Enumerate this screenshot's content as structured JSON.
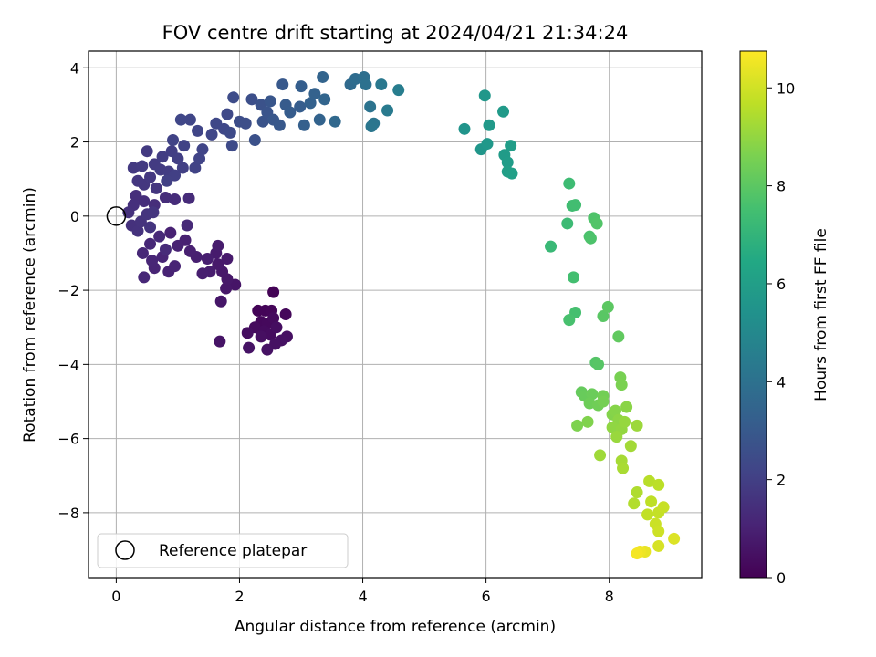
{
  "chart_data": {
    "type": "scatter",
    "title": "FOV centre drift starting at 2024/04/21 21:34:24",
    "xlabel": "Angular distance from reference (arcmin)",
    "ylabel": "Rotation from reference (arcmin)",
    "xlim": [
      -0.45,
      9.5
    ],
    "ylim": [
      -9.75,
      4.45
    ],
    "xticks": [
      0,
      2,
      4,
      6,
      8
    ],
    "yticks": [
      -8,
      -6,
      -4,
      -2,
      0,
      2,
      4
    ],
    "grid": true,
    "legend": {
      "position": "lower-left",
      "entries": [
        "Reference platepar"
      ]
    },
    "reference_point": {
      "x": 0,
      "y": 0,
      "label": "Reference platepar"
    },
    "colorbar": {
      "label": "Hours from first FF file",
      "colormap": "viridis",
      "range": [
        0,
        10.75
      ],
      "ticks": [
        0,
        2,
        4,
        6,
        8,
        10
      ]
    },
    "points": [
      {
        "x": 2.55,
        "y": -2.05,
        "t": 0.05
      },
      {
        "x": 2.3,
        "y": -2.55,
        "t": 0.1
      },
      {
        "x": 2.42,
        "y": -2.55,
        "t": 0.12
      },
      {
        "x": 2.52,
        "y": -2.55,
        "t": 0.15
      },
      {
        "x": 2.75,
        "y": -2.65,
        "t": 0.2
      },
      {
        "x": 2.35,
        "y": -2.85,
        "t": 0.22
      },
      {
        "x": 2.45,
        "y": -2.9,
        "t": 0.25
      },
      {
        "x": 2.55,
        "y": -2.75,
        "t": 0.28
      },
      {
        "x": 2.25,
        "y": -3.0,
        "t": 0.3
      },
      {
        "x": 2.4,
        "y": -3.1,
        "t": 0.32
      },
      {
        "x": 2.5,
        "y": -3.2,
        "t": 0.35
      },
      {
        "x": 2.6,
        "y": -3.0,
        "t": 0.38
      },
      {
        "x": 2.13,
        "y": -3.15,
        "t": 0.4
      },
      {
        "x": 2.35,
        "y": -3.25,
        "t": 0.42
      },
      {
        "x": 2.77,
        "y": -3.25,
        "t": 0.45
      },
      {
        "x": 2.68,
        "y": -3.35,
        "t": 0.48
      },
      {
        "x": 2.58,
        "y": -3.45,
        "t": 0.5
      },
      {
        "x": 2.45,
        "y": -3.6,
        "t": 0.52
      },
      {
        "x": 2.15,
        "y": -3.55,
        "t": 0.55
      },
      {
        "x": 1.68,
        "y": -3.38,
        "t": 0.58
      },
      {
        "x": 1.93,
        "y": -1.85,
        "t": 0.62
      },
      {
        "x": 1.7,
        "y": -2.3,
        "t": 0.65
      },
      {
        "x": 1.78,
        "y": -1.95,
        "t": 0.68
      },
      {
        "x": 1.8,
        "y": -1.7,
        "t": 0.7
      },
      {
        "x": 1.72,
        "y": -1.5,
        "t": 0.72
      },
      {
        "x": 1.65,
        "y": -1.3,
        "t": 0.75
      },
      {
        "x": 1.8,
        "y": -1.15,
        "t": 0.78
      },
      {
        "x": 1.62,
        "y": -1.0,
        "t": 0.8
      },
      {
        "x": 1.65,
        "y": -0.8,
        "t": 0.82
      },
      {
        "x": 1.52,
        "y": -1.5,
        "t": 0.85
      },
      {
        "x": 1.4,
        "y": -1.55,
        "t": 0.88
      },
      {
        "x": 1.48,
        "y": -1.15,
        "t": 0.9
      },
      {
        "x": 1.3,
        "y": -1.1,
        "t": 0.92
      },
      {
        "x": 1.2,
        "y": -0.95,
        "t": 0.95
      },
      {
        "x": 1.12,
        "y": -0.65,
        "t": 0.98
      },
      {
        "x": 1.0,
        "y": -0.8,
        "t": 1.0
      },
      {
        "x": 0.88,
        "y": -0.45,
        "t": 1.02
      },
      {
        "x": 0.85,
        "y": -1.5,
        "t": 1.05
      },
      {
        "x": 0.95,
        "y": -1.35,
        "t": 1.08
      },
      {
        "x": 0.62,
        "y": -1.4,
        "t": 1.1
      },
      {
        "x": 0.75,
        "y": -1.1,
        "t": 1.12
      },
      {
        "x": 0.58,
        "y": -1.2,
        "t": 1.15
      },
      {
        "x": 0.45,
        "y": -1.65,
        "t": 1.18
      },
      {
        "x": 0.43,
        "y": -1.0,
        "t": 1.2
      },
      {
        "x": 0.55,
        "y": -0.75,
        "t": 1.22
      },
      {
        "x": 0.7,
        "y": -0.55,
        "t": 1.25
      },
      {
        "x": 1.15,
        "y": -0.25,
        "t": 1.28
      },
      {
        "x": 0.8,
        "y": -0.9,
        "t": 1.3
      },
      {
        "x": 1.18,
        "y": 0.48,
        "t": 1.32
      },
      {
        "x": 0.95,
        "y": 0.45,
        "t": 1.35
      },
      {
        "x": 0.8,
        "y": 0.5,
        "t": 1.38
      },
      {
        "x": 0.62,
        "y": 0.3,
        "t": 1.4
      },
      {
        "x": 0.45,
        "y": 0.4,
        "t": 1.42
      },
      {
        "x": 0.32,
        "y": 0.55,
        "t": 1.45
      },
      {
        "x": 0.28,
        "y": 0.3,
        "t": 1.48
      },
      {
        "x": 0.2,
        "y": 0.1,
        "t": 1.5
      },
      {
        "x": 0.25,
        "y": -0.25,
        "t": 1.52
      },
      {
        "x": 0.35,
        "y": -0.4,
        "t": 1.55
      },
      {
        "x": 0.4,
        "y": -0.15,
        "t": 1.58
      },
      {
        "x": 0.5,
        "y": 0.05,
        "t": 1.6
      },
      {
        "x": 0.55,
        "y": -0.3,
        "t": 1.62
      },
      {
        "x": 0.6,
        "y": 0.1,
        "t": 1.65
      },
      {
        "x": 0.65,
        "y": 0.75,
        "t": 1.68
      },
      {
        "x": 0.45,
        "y": 0.85,
        "t": 1.7
      },
      {
        "x": 0.35,
        "y": 0.95,
        "t": 1.72
      },
      {
        "x": 0.55,
        "y": 1.05,
        "t": 1.75
      },
      {
        "x": 0.28,
        "y": 1.3,
        "t": 1.78
      },
      {
        "x": 0.42,
        "y": 1.35,
        "t": 1.8
      },
      {
        "x": 0.5,
        "y": 1.75,
        "t": 1.82
      },
      {
        "x": 0.62,
        "y": 1.4,
        "t": 1.85
      },
      {
        "x": 0.72,
        "y": 1.25,
        "t": 1.88
      },
      {
        "x": 0.85,
        "y": 1.2,
        "t": 1.9
      },
      {
        "x": 0.75,
        "y": 1.6,
        "t": 1.92
      },
      {
        "x": 0.9,
        "y": 1.75,
        "t": 1.95
      },
      {
        "x": 1.0,
        "y": 1.55,
        "t": 1.98
      },
      {
        "x": 1.08,
        "y": 1.3,
        "t": 2.0
      },
      {
        "x": 0.95,
        "y": 1.1,
        "t": 2.02
      },
      {
        "x": 0.82,
        "y": 0.95,
        "t": 2.05
      },
      {
        "x": 1.1,
        "y": 1.9,
        "t": 2.08
      },
      {
        "x": 0.92,
        "y": 2.05,
        "t": 2.1
      },
      {
        "x": 1.28,
        "y": 1.3,
        "t": 2.12
      },
      {
        "x": 1.35,
        "y": 1.55,
        "t": 2.15
      },
      {
        "x": 1.4,
        "y": 1.8,
        "t": 2.18
      },
      {
        "x": 1.32,
        "y": 2.3,
        "t": 2.2
      },
      {
        "x": 1.2,
        "y": 2.6,
        "t": 2.22
      },
      {
        "x": 1.05,
        "y": 2.6,
        "t": 2.25
      },
      {
        "x": 1.55,
        "y": 2.2,
        "t": 2.28
      },
      {
        "x": 1.62,
        "y": 2.5,
        "t": 2.3
      },
      {
        "x": 1.75,
        "y": 2.35,
        "t": 2.32
      },
      {
        "x": 1.8,
        "y": 2.75,
        "t": 2.35
      },
      {
        "x": 1.85,
        "y": 2.25,
        "t": 2.38
      },
      {
        "x": 1.88,
        "y": 1.9,
        "t": 2.4
      },
      {
        "x": 1.9,
        "y": 3.2,
        "t": 2.45
      },
      {
        "x": 2.0,
        "y": 2.55,
        "t": 2.5
      },
      {
        "x": 2.1,
        "y": 2.5,
        "t": 2.55
      },
      {
        "x": 2.2,
        "y": 3.15,
        "t": 2.6
      },
      {
        "x": 2.25,
        "y": 2.05,
        "t": 2.65
      },
      {
        "x": 2.35,
        "y": 3.0,
        "t": 2.7
      },
      {
        "x": 2.38,
        "y": 2.55,
        "t": 2.75
      },
      {
        "x": 2.45,
        "y": 2.8,
        "t": 2.8
      },
      {
        "x": 2.5,
        "y": 3.1,
        "t": 2.85
      },
      {
        "x": 2.55,
        "y": 2.6,
        "t": 2.9
      },
      {
        "x": 2.65,
        "y": 2.45,
        "t": 2.95
      },
      {
        "x": 2.7,
        "y": 3.55,
        "t": 3.0
      },
      {
        "x": 2.75,
        "y": 3.0,
        "t": 3.05
      },
      {
        "x": 2.82,
        "y": 2.8,
        "t": 3.1
      },
      {
        "x": 2.98,
        "y": 2.95,
        "t": 3.15
      },
      {
        "x": 3.0,
        "y": 3.5,
        "t": 3.2
      },
      {
        "x": 3.05,
        "y": 2.45,
        "t": 3.25
      },
      {
        "x": 3.15,
        "y": 3.05,
        "t": 3.3
      },
      {
        "x": 3.22,
        "y": 3.3,
        "t": 3.35
      },
      {
        "x": 3.3,
        "y": 2.6,
        "t": 3.4
      },
      {
        "x": 3.35,
        "y": 3.75,
        "t": 3.45
      },
      {
        "x": 3.38,
        "y": 3.15,
        "t": 3.5
      },
      {
        "x": 3.55,
        "y": 2.55,
        "t": 3.6
      },
      {
        "x": 3.8,
        "y": 3.55,
        "t": 3.7
      },
      {
        "x": 3.88,
        "y": 3.7,
        "t": 3.8
      },
      {
        "x": 4.02,
        "y": 3.75,
        "t": 3.9
      },
      {
        "x": 4.05,
        "y": 3.55,
        "t": 4.0
      },
      {
        "x": 4.12,
        "y": 2.95,
        "t": 4.1
      },
      {
        "x": 4.18,
        "y": 2.5,
        "t": 4.15
      },
      {
        "x": 4.14,
        "y": 2.42,
        "t": 4.2
      },
      {
        "x": 4.3,
        "y": 3.55,
        "t": 4.3
      },
      {
        "x": 4.4,
        "y": 2.85,
        "t": 4.4
      },
      {
        "x": 4.58,
        "y": 3.4,
        "t": 4.5
      },
      {
        "x": 5.65,
        "y": 2.35,
        "t": 5.5
      },
      {
        "x": 5.92,
        "y": 1.8,
        "t": 5.6
      },
      {
        "x": 5.98,
        "y": 3.25,
        "t": 5.65
      },
      {
        "x": 6.02,
        "y": 1.95,
        "t": 5.7
      },
      {
        "x": 6.05,
        "y": 2.45,
        "t": 5.75
      },
      {
        "x": 6.28,
        "y": 2.82,
        "t": 5.8
      },
      {
        "x": 6.3,
        "y": 1.65,
        "t": 5.85
      },
      {
        "x": 6.35,
        "y": 1.45,
        "t": 5.9
      },
      {
        "x": 6.4,
        "y": 1.9,
        "t": 5.95
      },
      {
        "x": 6.35,
        "y": 1.2,
        "t": 6.0
      },
      {
        "x": 6.42,
        "y": 1.15,
        "t": 6.05
      },
      {
        "x": 7.05,
        "y": -0.82,
        "t": 7.2
      },
      {
        "x": 7.32,
        "y": -0.2,
        "t": 7.3
      },
      {
        "x": 7.35,
        "y": 0.88,
        "t": 7.35
      },
      {
        "x": 7.4,
        "y": 0.28,
        "t": 7.4
      },
      {
        "x": 7.45,
        "y": 0.3,
        "t": 7.45
      },
      {
        "x": 7.42,
        "y": -1.65,
        "t": 7.5
      },
      {
        "x": 7.45,
        "y": -2.6,
        "t": 7.55
      },
      {
        "x": 7.35,
        "y": -2.8,
        "t": 7.6
      },
      {
        "x": 7.68,
        "y": -0.55,
        "t": 7.65
      },
      {
        "x": 7.7,
        "y": -0.6,
        "t": 7.7
      },
      {
        "x": 7.75,
        "y": -0.05,
        "t": 7.75
      },
      {
        "x": 7.8,
        "y": -0.2,
        "t": 7.8
      },
      {
        "x": 7.78,
        "y": -3.95,
        "t": 7.85
      },
      {
        "x": 7.82,
        "y": -4.0,
        "t": 7.9
      },
      {
        "x": 7.9,
        "y": -2.7,
        "t": 7.95
      },
      {
        "x": 7.98,
        "y": -2.45,
        "t": 8.0
      },
      {
        "x": 8.15,
        "y": -3.25,
        "t": 8.1
      },
      {
        "x": 7.55,
        "y": -4.75,
        "t": 8.2
      },
      {
        "x": 7.6,
        "y": -4.85,
        "t": 8.25
      },
      {
        "x": 7.72,
        "y": -4.8,
        "t": 8.3
      },
      {
        "x": 7.68,
        "y": -5.05,
        "t": 8.35
      },
      {
        "x": 7.82,
        "y": -5.1,
        "t": 8.4
      },
      {
        "x": 7.9,
        "y": -4.85,
        "t": 8.45
      },
      {
        "x": 7.9,
        "y": -5.0,
        "t": 8.5
      },
      {
        "x": 8.18,
        "y": -4.35,
        "t": 8.55
      },
      {
        "x": 8.2,
        "y": -4.55,
        "t": 8.6
      },
      {
        "x": 7.48,
        "y": -5.65,
        "t": 8.65
      },
      {
        "x": 7.65,
        "y": -5.55,
        "t": 8.7
      },
      {
        "x": 8.05,
        "y": -5.35,
        "t": 8.75
      },
      {
        "x": 8.1,
        "y": -5.25,
        "t": 8.8
      },
      {
        "x": 8.28,
        "y": -5.15,
        "t": 8.85
      },
      {
        "x": 8.15,
        "y": -5.5,
        "t": 8.9
      },
      {
        "x": 8.05,
        "y": -5.7,
        "t": 8.95
      },
      {
        "x": 8.2,
        "y": -5.75,
        "t": 9.0
      },
      {
        "x": 8.25,
        "y": -5.55,
        "t": 9.05
      },
      {
        "x": 8.12,
        "y": -5.95,
        "t": 9.1
      },
      {
        "x": 8.45,
        "y": -5.65,
        "t": 9.15
      },
      {
        "x": 7.85,
        "y": -6.45,
        "t": 9.2
      },
      {
        "x": 8.35,
        "y": -6.2,
        "t": 9.25
      },
      {
        "x": 8.2,
        "y": -6.6,
        "t": 9.3
      },
      {
        "x": 8.22,
        "y": -6.8,
        "t": 9.35
      },
      {
        "x": 8.45,
        "y": -7.45,
        "t": 9.45
      },
      {
        "x": 8.4,
        "y": -7.75,
        "t": 9.5
      },
      {
        "x": 8.65,
        "y": -7.15,
        "t": 9.6
      },
      {
        "x": 8.8,
        "y": -7.25,
        "t": 9.65
      },
      {
        "x": 8.68,
        "y": -7.7,
        "t": 9.7
      },
      {
        "x": 8.62,
        "y": -8.05,
        "t": 9.75
      },
      {
        "x": 8.8,
        "y": -8.0,
        "t": 9.8
      },
      {
        "x": 8.88,
        "y": -7.85,
        "t": 9.85
      },
      {
        "x": 8.75,
        "y": -8.3,
        "t": 9.9
      },
      {
        "x": 8.8,
        "y": -8.5,
        "t": 9.95
      },
      {
        "x": 8.8,
        "y": -8.9,
        "t": 10.1
      },
      {
        "x": 9.05,
        "y": -8.7,
        "t": 10.2
      },
      {
        "x": 8.58,
        "y": -9.05,
        "t": 10.4
      },
      {
        "x": 8.5,
        "y": -9.05,
        "t": 10.5
      },
      {
        "x": 8.45,
        "y": -9.1,
        "t": 10.6
      }
    ]
  }
}
